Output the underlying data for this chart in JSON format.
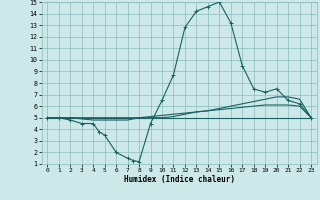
{
  "xlabel": "Humidex (Indice chaleur)",
  "bg_color": "#cce8e8",
  "grid_color": "#8bbcbc",
  "line_color": "#1a6060",
  "xlim": [
    -0.5,
    23.5
  ],
  "ylim": [
    1,
    15
  ],
  "xticks": [
    0,
    1,
    2,
    3,
    4,
    5,
    6,
    7,
    8,
    9,
    10,
    11,
    12,
    13,
    14,
    15,
    16,
    17,
    18,
    19,
    20,
    21,
    22,
    23
  ],
  "yticks": [
    1,
    2,
    3,
    4,
    5,
    6,
    7,
    8,
    9,
    10,
    11,
    12,
    13,
    14,
    15
  ],
  "curve1_x": [
    0,
    1,
    2,
    3,
    4,
    4.5,
    5,
    6,
    7,
    7.5,
    8,
    9,
    10,
    11,
    12,
    13,
    14,
    15,
    16,
    17,
    18,
    19,
    20,
    21,
    22,
    23
  ],
  "curve1_y": [
    5,
    5,
    4.8,
    4.5,
    4.5,
    3.8,
    3.5,
    2.0,
    1.5,
    1.3,
    1.2,
    4.5,
    6.5,
    8.7,
    12.8,
    14.2,
    14.6,
    15.0,
    13.2,
    9.5,
    7.5,
    7.2,
    7.5,
    6.5,
    6.2,
    5.0
  ],
  "curve2_x": [
    0,
    1,
    2,
    3,
    4,
    5,
    6,
    7,
    8,
    9,
    10,
    11,
    12,
    13,
    14,
    15,
    16,
    17,
    18,
    19,
    20,
    21,
    22,
    23
  ],
  "curve2_y": [
    5,
    5,
    5,
    5,
    5,
    5,
    5,
    5,
    5,
    5,
    5.0,
    5.1,
    5.3,
    5.5,
    5.6,
    5.8,
    6.0,
    6.2,
    6.4,
    6.6,
    6.8,
    6.8,
    6.6,
    5.0
  ],
  "curve3_x": [
    0,
    1,
    2,
    3,
    4,
    5,
    6,
    7,
    8,
    9,
    10,
    11,
    12,
    13,
    14,
    15,
    16,
    17,
    18,
    19,
    20,
    21,
    22,
    23
  ],
  "curve3_y": [
    5,
    5,
    5,
    4.9,
    4.8,
    4.8,
    4.8,
    4.8,
    5.0,
    5.1,
    5.2,
    5.3,
    5.4,
    5.5,
    5.6,
    5.7,
    5.8,
    5.9,
    6.0,
    6.1,
    6.1,
    6.1,
    6.0,
    5.0
  ],
  "curve4_x": [
    0,
    23
  ],
  "curve4_y": [
    5.0,
    5.0
  ]
}
